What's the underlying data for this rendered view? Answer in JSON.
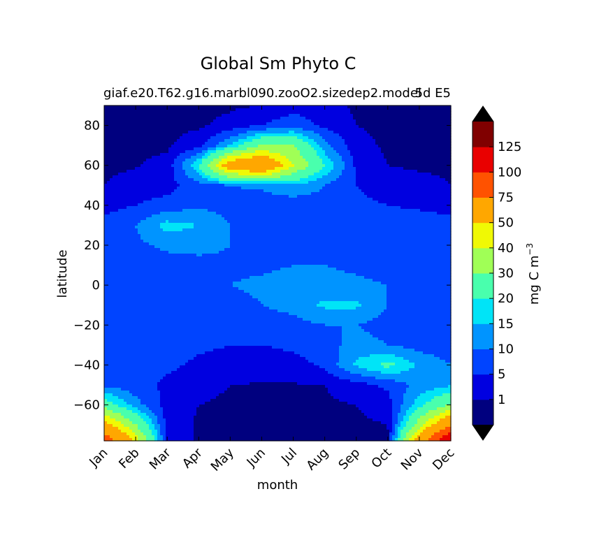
{
  "chart_data": {
    "type": "contourf",
    "title": "Global Sm Phyto C",
    "subtitle_left": "giaf.e20.T62.g16.marbl090.zooO2.sizedep2.model",
    "subtitle_right": "5d E5",
    "xlabel": "month",
    "ylabel": "latitude",
    "x_ticks": [
      "Jan",
      "Feb",
      "Mar",
      "Apr",
      "May",
      "Jun",
      "Jul",
      "Aug",
      "Sep",
      "Oct",
      "Nov",
      "Dec"
    ],
    "xlim": [
      0,
      11
    ],
    "ylim": [
      -78,
      90
    ],
    "y_ticks": [
      80,
      60,
      40,
      20,
      0,
      -20,
      -40,
      -60
    ],
    "colorbar": {
      "label": "mg C m",
      "label_superscript": "−3",
      "levels": [
        0,
        1,
        5,
        10,
        15,
        20,
        30,
        40,
        50,
        75,
        100,
        125,
        150
      ],
      "tick_labels": [
        "1",
        "5",
        "10",
        "15",
        "20",
        "30",
        "40",
        "50",
        "75",
        "100",
        "125"
      ],
      "extend": "both",
      "colors": [
        "#00007f",
        "#0000e0",
        "#0044ff",
        "#0094ff",
        "#00e4f7",
        "#49ffad",
        "#a0ff56",
        "#f0f904",
        "#ffa700",
        "#ff5200",
        "#e90000",
        "#800000"
      ],
      "over_color": "#000000",
      "under_color": "#000000"
    },
    "series": [
      {
        "name": "phyto_C",
        "grid_months": [
          0,
          1,
          2,
          3,
          4,
          5,
          6,
          7,
          8,
          9,
          10,
          11
        ],
        "grid_lat": [
          -78,
          -70,
          -60,
          -50,
          -40,
          -30,
          -20,
          -10,
          0,
          10,
          20,
          30,
          40,
          50,
          60,
          70,
          80,
          90
        ],
        "values": [
          [
            90,
            45,
            4,
            0.5,
            0.3,
            0.3,
            0.3,
            0.3,
            0.3,
            0.5,
            60,
            130
          ],
          [
            55,
            30,
            3,
            0.5,
            0.3,
            0.2,
            0.2,
            0.2,
            0.3,
            1,
            35,
            70
          ],
          [
            25,
            12,
            3,
            1,
            0.5,
            0.4,
            0.4,
            0.5,
            1,
            3,
            18,
            30
          ],
          [
            9,
            7,
            4,
            2,
            1,
            0.8,
            0.8,
            1,
            3,
            6,
            12,
            14
          ],
          [
            8,
            7,
            6,
            4,
            3,
            2.5,
            3,
            6,
            16,
            22,
            14,
            10
          ],
          [
            7,
            7,
            7,
            6,
            5,
            5,
            6,
            8,
            12,
            10,
            8,
            7
          ],
          [
            6,
            6,
            7,
            7,
            7,
            7,
            8,
            10,
            10,
            8,
            7,
            6
          ],
          [
            6,
            6,
            6,
            7,
            8,
            10,
            12,
            16,
            16,
            10,
            7,
            6
          ],
          [
            8,
            8,
            8,
            9,
            10,
            11,
            12,
            12,
            11,
            10,
            9,
            8
          ],
          [
            7,
            7,
            8,
            8,
            9,
            9,
            10,
            10,
            9,
            8,
            8,
            7
          ],
          [
            8,
            9,
            11,
            12,
            10,
            9,
            9,
            8,
            8,
            8,
            9,
            9
          ],
          [
            7,
            10,
            17,
            15,
            10,
            9,
            9,
            9,
            8,
            8,
            8,
            7
          ],
          [
            3,
            5,
            7,
            9,
            8,
            7,
            7,
            8,
            6,
            5,
            4,
            3
          ],
          [
            1,
            2,
            3,
            8,
            10,
            11,
            14,
            10,
            5,
            3,
            2,
            1
          ],
          [
            0.5,
            0.8,
            2,
            20,
            60,
            70,
            40,
            20,
            4,
            1,
            0.5,
            0.5
          ],
          [
            0.3,
            0.3,
            0.5,
            3,
            15,
            30,
            30,
            12,
            2,
            0.5,
            0.3,
            0.3
          ],
          [
            0.2,
            0.2,
            0.3,
            0.5,
            2,
            5,
            8,
            4,
            1,
            0.3,
            0.2,
            0.2
          ],
          [
            0.2,
            0.2,
            0.2,
            0.3,
            0.5,
            1,
            3,
            2,
            0.5,
            0.2,
            0.2,
            0.2
          ]
        ]
      }
    ]
  }
}
